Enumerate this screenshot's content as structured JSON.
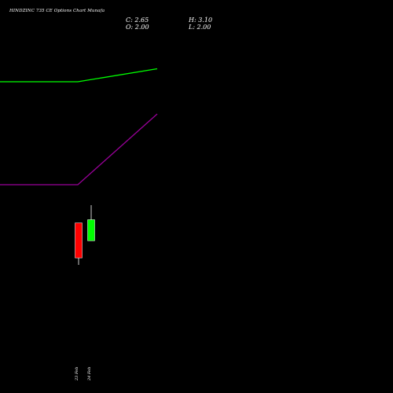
{
  "header": {
    "title": "HINDZINC 735 CE Options Chart Munafa",
    "close_text": "C: 2.65",
    "open_text": "O: 2.00",
    "high_text": "H: 3.10",
    "low_text": "L: 2.00"
  },
  "chart_data": {
    "type": "candlestick",
    "title": "HINDZINC 735 CE Options Chart Munafa",
    "candles": [
      {
        "label": "23 Feb",
        "open": 2.55,
        "high": 2.55,
        "low": 1.4,
        "close": 1.47,
        "direction": "down",
        "color": "#ff0000"
      },
      {
        "label": "24 Feb",
        "open": 2.0,
        "high": 3.1,
        "low": 2.0,
        "close": 2.65,
        "direction": "up",
        "color": "#00ff00"
      }
    ],
    "overlay_lines": [
      {
        "color": "#00ff00",
        "points": [
          {
            "x_index": -2,
            "level": "flat"
          },
          {
            "x_index": 0,
            "level": "flat"
          },
          {
            "x_index": 1,
            "level": "rising"
          }
        ]
      },
      {
        "color": "#990099",
        "points": [
          {
            "x_index": -2,
            "level": "flat"
          },
          {
            "x_index": 0,
            "level": "flat"
          },
          {
            "x_index": 1,
            "level": "rising"
          }
        ]
      }
    ],
    "grid": false,
    "background": "#000000"
  }
}
